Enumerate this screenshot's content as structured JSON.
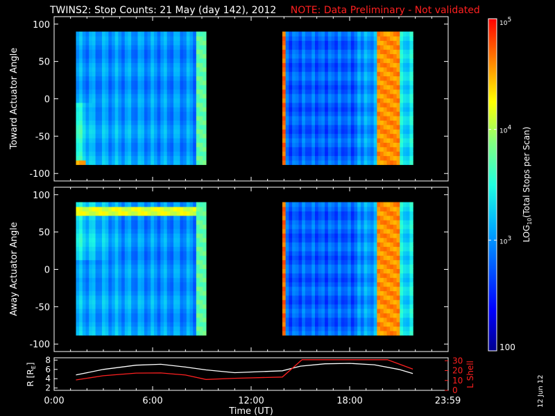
{
  "header": {
    "title": "TWINS2: Stop Counts: 21 May (day 142), 2012",
    "note": "NOTE: Data Preliminary - Not validated"
  },
  "date_stamp": "12 Jun 12",
  "colors": {
    "background": "#000000",
    "axes": "#ffffff",
    "lshell": "#ff2020",
    "radius": "#ffffff"
  },
  "chart_data": [
    {
      "type": "heatmap",
      "name": "toward",
      "ylabel": "Toward Actuator Angle",
      "x_units": "UT hours",
      "xlim": [
        0,
        24
      ],
      "ylim": [
        -110,
        110
      ],
      "yticks": [
        -100,
        -50,
        0,
        50,
        100
      ],
      "y_tick_labels": [
        "-100",
        "-50",
        "0",
        "50",
        "100"
      ],
      "data_windows": [
        [
          1.33,
          9.25
        ],
        [
          13.9,
          21.85
        ]
      ],
      "angle_range": [
        -88,
        90
      ],
      "features": [
        {
          "window": 0,
          "from_x": 1.33,
          "to_x": 2.0,
          "from_y": -88,
          "to_y": -80,
          "level": 0.82
        },
        {
          "window": 0,
          "from_x": 8.65,
          "to_x": 9.25,
          "from_y": -88,
          "to_y": 90,
          "level": 0.58
        },
        {
          "window": 1,
          "from_x": 13.9,
          "to_x": 14.1,
          "from_y": -88,
          "to_y": 90,
          "level": 0.9
        },
        {
          "window": 1,
          "from_x": 19.6,
          "to_x": 21.0,
          "from_y": -88,
          "to_y": 90,
          "level": 0.86
        }
      ]
    },
    {
      "type": "heatmap",
      "name": "away",
      "ylabel": "Away Actuator Angle",
      "x_units": "UT hours",
      "xlim": [
        0,
        24
      ],
      "ylim": [
        -110,
        110
      ],
      "yticks": [
        -100,
        -50,
        0,
        50,
        100
      ],
      "y_tick_labels": [
        "-100",
        "-50",
        "0",
        "50",
        "100"
      ],
      "data_windows": [
        [
          1.33,
          9.25
        ],
        [
          13.9,
          21.85
        ]
      ],
      "angle_range": [
        -88,
        90
      ],
      "features": [
        {
          "window": 0,
          "from_x": 1.33,
          "to_x": 9.25,
          "from_y": 70,
          "to_y": 84,
          "level": 0.72
        },
        {
          "window": 0,
          "from_x": 8.65,
          "to_x": 9.25,
          "from_y": -88,
          "to_y": 90,
          "level": 0.58
        },
        {
          "window": 1,
          "from_x": 13.9,
          "to_x": 14.1,
          "from_y": -88,
          "to_y": 90,
          "level": 0.9
        },
        {
          "window": 1,
          "from_x": 19.6,
          "to_x": 21.0,
          "from_y": -88,
          "to_y": 90,
          "level": 0.86
        }
      ]
    },
    {
      "type": "line",
      "name": "orbit",
      "xlabel": "Time (UT)",
      "x_tick_labels": [
        "0:00",
        "6:00",
        "12:00",
        "18:00",
        "23:59"
      ],
      "xticks": [
        0,
        6,
        12,
        18,
        23.98
      ],
      "xlim": [
        0,
        24
      ],
      "ylabel_left": "R [R",
      "ylabel_left_sub": "E",
      "ylabel_left_close": "]",
      "ylim_left": [
        1.5,
        8.5
      ],
      "yticks_left": [
        2,
        4,
        6,
        8
      ],
      "y_tick_labels_left": [
        "2",
        "4",
        "6",
        "8"
      ],
      "ylabel_right": "L Shell",
      "ylim_right": [
        0,
        33
      ],
      "yticks_right": [
        0,
        10,
        20,
        30
      ],
      "y_tick_labels_right": [
        "0",
        "10",
        "20",
        "30"
      ],
      "series": [
        {
          "axis": "left",
          "color": "#ffffff",
          "x": [
            1.33,
            3,
            5,
            6.5,
            8,
            9.25,
            11,
            13.9,
            15,
            16.5,
            18,
            19.5,
            21,
            21.85
          ],
          "y": [
            4.8,
            6.0,
            6.9,
            7.1,
            6.5,
            5.9,
            5.3,
            5.7,
            6.7,
            7.2,
            7.3,
            7.0,
            6.0,
            5.1
          ]
        },
        {
          "axis": "right",
          "color": "#ff2020",
          "x": [
            1.33,
            3,
            5,
            6.5,
            8,
            9.25,
            11,
            13.9,
            15.1,
            20.3,
            21.85
          ],
          "y": [
            10.5,
            14.8,
            17.5,
            17.6,
            15.5,
            11.0,
            12.2,
            13.5,
            31,
            31,
            21.5
          ]
        }
      ]
    }
  ],
  "colorbar": {
    "label_prefix": "LOG",
    "label_sub": "10",
    "label_suffix": "(Total Stops per Scan)",
    "scale": "log",
    "range": [
      100,
      100000
    ],
    "ticks": [
      {
        "value": 100000,
        "base": "10",
        "exp": "5"
      },
      {
        "value": 10000,
        "base": "10",
        "exp": "4"
      },
      {
        "value": 1000,
        "base": "10",
        "exp": "3"
      },
      {
        "value": 100,
        "text": "100"
      }
    ]
  }
}
